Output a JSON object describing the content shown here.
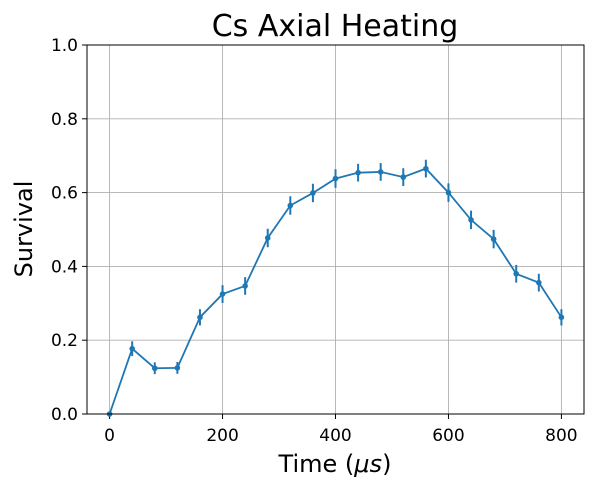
{
  "chart_data": {
    "type": "line",
    "title": "Cs Axial Heating",
    "xlabel_text": "Time (",
    "xlabel_symbol": "μs",
    "xlabel_close": ")",
    "ylabel": "Survival",
    "xlim": [
      -40,
      840
    ],
    "ylim": [
      0.0,
      1.0
    ],
    "x_ticks": [
      0,
      200,
      400,
      600,
      800
    ],
    "x_tick_labels": [
      "0",
      "200",
      "400",
      "600",
      "800"
    ],
    "y_ticks": [
      0.0,
      0.2,
      0.4,
      0.6,
      0.8,
      1.0
    ],
    "y_tick_labels": [
      "0.0",
      "0.2",
      "0.4",
      "0.6",
      "0.8",
      "1.0"
    ],
    "grid": true,
    "line_color": "#1f77b4",
    "series": [
      {
        "x": [
          0,
          40,
          80,
          120,
          160,
          200,
          240,
          280,
          320,
          360,
          400,
          440,
          480,
          520,
          560,
          600,
          640,
          680,
          720,
          760,
          800
        ],
        "y": [
          0.0,
          0.177,
          0.124,
          0.125,
          0.262,
          0.325,
          0.347,
          0.477,
          0.565,
          0.599,
          0.638,
          0.654,
          0.656,
          0.642,
          0.665,
          0.6,
          0.526,
          0.474,
          0.38,
          0.356,
          0.262
        ],
        "yerr": [
          0.0,
          0.02,
          0.016,
          0.016,
          0.022,
          0.024,
          0.024,
          0.025,
          0.025,
          0.025,
          0.025,
          0.024,
          0.024,
          0.024,
          0.024,
          0.025,
          0.025,
          0.025,
          0.024,
          0.024,
          0.022
        ]
      }
    ]
  }
}
